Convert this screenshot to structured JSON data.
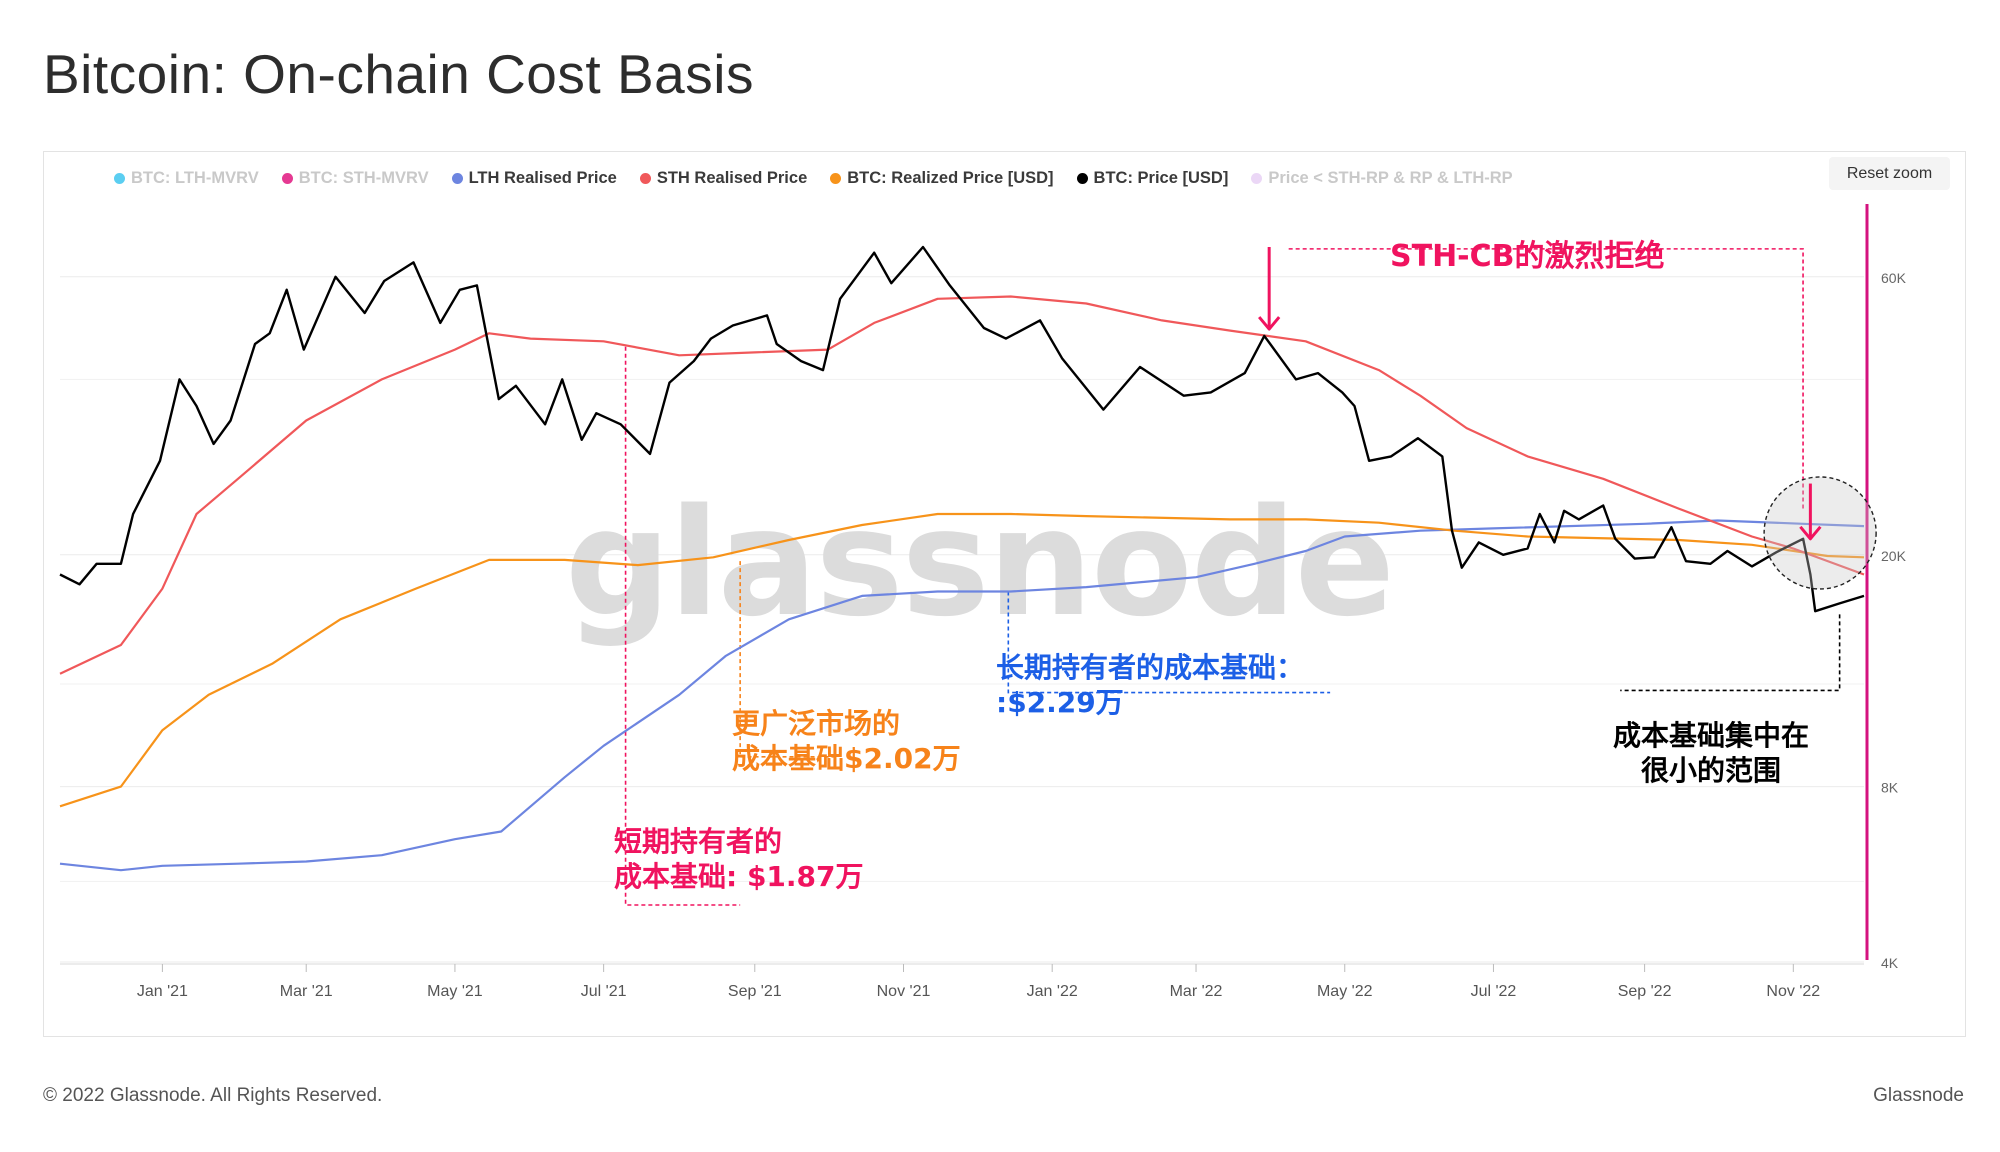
{
  "title": "Bitcoin: On-chain Cost Basis",
  "footer": {
    "copyright": "© 2022 Glassnode. All Rights Reserved.",
    "brand": "Glassnode"
  },
  "reset_zoom_label": "Reset zoom",
  "watermark": "glassnode",
  "legend": [
    {
      "label": "BTC: LTH-MVRV",
      "color": "#3ec6ee",
      "enabled": false
    },
    {
      "label": "BTC: STH-MVRV",
      "color": "#e0167f",
      "enabled": false
    },
    {
      "label": "LTH Realised Price",
      "color": "#6d85e0",
      "enabled": true
    },
    {
      "label": "STH Realised Price",
      "color": "#f0585a",
      "enabled": true
    },
    {
      "label": "BTC: Realized Price [USD]",
      "color": "#f7931a",
      "enabled": true
    },
    {
      "label": "BTC: Price [USD]",
      "color": "#000000",
      "enabled": true
    },
    {
      "label": "Price < STH-RP & RP & LTH-RP",
      "color": "#e8d0f5",
      "enabled": false
    }
  ],
  "annotations": {
    "sth_rejection": "STH-CB的激烈拒绝",
    "lth_cost_basis": [
      "长期持有者的成本基础：",
      ":$2.29万"
    ],
    "market_cost_basis": [
      "更广泛市场的",
      "成本基础$2.02万"
    ],
    "sth_cost_basis": [
      "短期持有者的",
      "成本基础: $1.87万"
    ],
    "concentration": [
      "成本基础集中在",
      "很小的范围"
    ]
  },
  "colors": {
    "annotation_pink": "#f0135f",
    "annotation_blue": "#1c5fe6",
    "annotation_orange": "#f7831a",
    "annotation_black": "#000000",
    "right_axis_line": "#d4127f"
  },
  "chart_data": {
    "type": "line",
    "y_scale": "log",
    "ylim": [
      4000,
      80000
    ],
    "y_ticks": [
      {
        "value": 60000,
        "label": "60K"
      },
      {
        "value": 20000,
        "label": "20K"
      },
      {
        "value": 8000,
        "label": "8K"
      },
      {
        "value": 4000,
        "label": "4K"
      }
    ],
    "x_range": [
      "2020-11-20",
      "2022-11-30"
    ],
    "x_ticks": [
      {
        "date": "2021-01-01",
        "label": "Jan '21"
      },
      {
        "date": "2021-03-01",
        "label": "Mar '21"
      },
      {
        "date": "2021-05-01",
        "label": "May '21"
      },
      {
        "date": "2021-07-01",
        "label": "Jul '21"
      },
      {
        "date": "2021-09-01",
        "label": "Sep '21"
      },
      {
        "date": "2021-11-01",
        "label": "Nov '21"
      },
      {
        "date": "2022-01-01",
        "label": "Jan '22"
      },
      {
        "date": "2022-03-01",
        "label": "Mar '22"
      },
      {
        "date": "2022-05-01",
        "label": "May '22"
      },
      {
        "date": "2022-07-01",
        "label": "Jul '22"
      },
      {
        "date": "2022-09-01",
        "label": "Sep '22"
      },
      {
        "date": "2022-11-01",
        "label": "Nov '22"
      }
    ],
    "series": [
      {
        "name": "BTC: Price [USD]",
        "color": "#000000",
        "values": [
          [
            "2020-11-20",
            18500
          ],
          [
            "2020-11-28",
            17800
          ],
          [
            "2020-12-05",
            19300
          ],
          [
            "2020-12-15",
            19300
          ],
          [
            "2020-12-20",
            23500
          ],
          [
            "2020-12-31",
            29000
          ],
          [
            "2021-01-08",
            40000
          ],
          [
            "2021-01-15",
            36000
          ],
          [
            "2021-01-22",
            31000
          ],
          [
            "2021-01-29",
            34000
          ],
          [
            "2021-02-08",
            46000
          ],
          [
            "2021-02-14",
            48000
          ],
          [
            "2021-02-21",
            57000
          ],
          [
            "2021-02-28",
            45000
          ],
          [
            "2021-03-13",
            60000
          ],
          [
            "2021-03-25",
            52000
          ],
          [
            "2021-04-02",
            59000
          ],
          [
            "2021-04-14",
            63500
          ],
          [
            "2021-04-25",
            50000
          ],
          [
            "2021-05-03",
            57000
          ],
          [
            "2021-05-10",
            58000
          ],
          [
            "2021-05-19",
            37000
          ],
          [
            "2021-05-26",
            39000
          ],
          [
            "2021-06-07",
            33500
          ],
          [
            "2021-06-14",
            40000
          ],
          [
            "2021-06-22",
            31500
          ],
          [
            "2021-06-28",
            35000
          ],
          [
            "2021-07-08",
            33500
          ],
          [
            "2021-07-20",
            29800
          ],
          [
            "2021-07-28",
            39500
          ],
          [
            "2021-08-07",
            43000
          ],
          [
            "2021-08-14",
            47000
          ],
          [
            "2021-08-23",
            49500
          ],
          [
            "2021-09-06",
            51500
          ],
          [
            "2021-09-10",
            46000
          ],
          [
            "2021-09-20",
            43000
          ],
          [
            "2021-09-29",
            41500
          ],
          [
            "2021-10-06",
            55000
          ],
          [
            "2021-10-20",
            66000
          ],
          [
            "2021-10-27",
            58500
          ],
          [
            "2021-11-09",
            67500
          ],
          [
            "2021-11-20",
            58000
          ],
          [
            "2021-12-04",
            49000
          ],
          [
            "2021-12-13",
            47000
          ],
          [
            "2021-12-27",
            50500
          ],
          [
            "2022-01-05",
            43500
          ],
          [
            "2022-01-22",
            35500
          ],
          [
            "2022-02-06",
            42000
          ],
          [
            "2022-02-24",
            37500
          ],
          [
            "2022-03-07",
            38000
          ],
          [
            "2022-03-21",
            41000
          ],
          [
            "2022-03-29",
            47500
          ],
          [
            "2022-04-11",
            40000
          ],
          [
            "2022-04-20",
            41000
          ],
          [
            "2022-04-30",
            38000
          ],
          [
            "2022-05-05",
            36000
          ],
          [
            "2022-05-11",
            29000
          ],
          [
            "2022-05-20",
            29500
          ],
          [
            "2022-05-31",
            31700
          ],
          [
            "2022-06-10",
            29500
          ],
          [
            "2022-06-14",
            22000
          ],
          [
            "2022-06-18",
            19000
          ],
          [
            "2022-06-25",
            21000
          ],
          [
            "2022-07-05",
            20000
          ],
          [
            "2022-07-15",
            20500
          ],
          [
            "2022-07-20",
            23500
          ],
          [
            "2022-07-26",
            21000
          ],
          [
            "2022-07-30",
            23800
          ],
          [
            "2022-08-05",
            23000
          ],
          [
            "2022-08-15",
            24300
          ],
          [
            "2022-08-20",
            21300
          ],
          [
            "2022-08-28",
            19700
          ],
          [
            "2022-09-05",
            19800
          ],
          [
            "2022-09-12",
            22300
          ],
          [
            "2022-09-18",
            19500
          ],
          [
            "2022-09-28",
            19300
          ],
          [
            "2022-10-05",
            20300
          ],
          [
            "2022-10-15",
            19100
          ],
          [
            "2022-10-25",
            20200
          ],
          [
            "2022-11-05",
            21300
          ],
          [
            "2022-11-08",
            18500
          ],
          [
            "2022-11-10",
            16000
          ],
          [
            "2022-11-20",
            16500
          ],
          [
            "2022-11-30",
            17000
          ]
        ]
      },
      {
        "name": "STH Realised Price",
        "color": "#f0585a",
        "values": [
          [
            "2020-11-20",
            12500
          ],
          [
            "2020-12-15",
            14000
          ],
          [
            "2021-01-01",
            17500
          ],
          [
            "2021-01-15",
            23500
          ],
          [
            "2021-02-01",
            27000
          ],
          [
            "2021-03-01",
            34000
          ],
          [
            "2021-04-01",
            40000
          ],
          [
            "2021-05-01",
            45000
          ],
          [
            "2021-05-15",
            48000
          ],
          [
            "2021-06-01",
            47000
          ],
          [
            "2021-07-01",
            46500
          ],
          [
            "2021-08-01",
            44000
          ],
          [
            "2021-09-01",
            44500
          ],
          [
            "2021-10-01",
            45000
          ],
          [
            "2021-10-20",
            50000
          ],
          [
            "2021-11-15",
            55000
          ],
          [
            "2021-12-15",
            55500
          ],
          [
            "2022-01-15",
            54000
          ],
          [
            "2022-02-15",
            50500
          ],
          [
            "2022-03-15",
            48500
          ],
          [
            "2022-04-15",
            46500
          ],
          [
            "2022-05-15",
            41500
          ],
          [
            "2022-06-01",
            37500
          ],
          [
            "2022-06-20",
            33000
          ],
          [
            "2022-07-15",
            29500
          ],
          [
            "2022-08-15",
            27000
          ],
          [
            "2022-09-15",
            24000
          ],
          [
            "2022-10-15",
            21500
          ],
          [
            "2022-11-01",
            20500
          ],
          [
            "2022-11-30",
            18500
          ]
        ]
      },
      {
        "name": "BTC: Realized Price [USD]",
        "color": "#f7931a",
        "values": [
          [
            "2020-11-20",
            7400
          ],
          [
            "2020-12-15",
            8000
          ],
          [
            "2021-01-01",
            10000
          ],
          [
            "2021-01-20",
            11500
          ],
          [
            "2021-02-15",
            13000
          ],
          [
            "2021-03-15",
            15500
          ],
          [
            "2021-04-15",
            17500
          ],
          [
            "2021-05-15",
            19600
          ],
          [
            "2021-06-15",
            19600
          ],
          [
            "2021-07-15",
            19200
          ],
          [
            "2021-08-15",
            19800
          ],
          [
            "2021-09-15",
            21200
          ],
          [
            "2021-10-15",
            22500
          ],
          [
            "2021-11-15",
            23500
          ],
          [
            "2021-12-15",
            23500
          ],
          [
            "2022-01-15",
            23300
          ],
          [
            "2022-03-15",
            23000
          ],
          [
            "2022-04-15",
            23000
          ],
          [
            "2022-05-15",
            22700
          ],
          [
            "2022-06-15",
            22000
          ],
          [
            "2022-07-15",
            21500
          ],
          [
            "2022-09-15",
            21200
          ],
          [
            "2022-10-15",
            20800
          ],
          [
            "2022-11-15",
            19900
          ],
          [
            "2022-11-30",
            19800
          ]
        ]
      },
      {
        "name": "LTH Realised Price",
        "color": "#6d85e0",
        "values": [
          [
            "2020-11-20",
            5900
          ],
          [
            "2020-12-15",
            5750
          ],
          [
            "2021-01-01",
            5850
          ],
          [
            "2021-02-01",
            5900
          ],
          [
            "2021-03-01",
            5950
          ],
          [
            "2021-04-01",
            6100
          ],
          [
            "2021-05-01",
            6500
          ],
          [
            "2021-05-20",
            6700
          ],
          [
            "2021-06-15",
            8300
          ],
          [
            "2021-07-01",
            9400
          ],
          [
            "2021-08-01",
            11500
          ],
          [
            "2021-08-20",
            13400
          ],
          [
            "2021-09-15",
            15500
          ],
          [
            "2021-10-15",
            17000
          ],
          [
            "2021-11-15",
            17300
          ],
          [
            "2021-12-15",
            17300
          ],
          [
            "2022-01-15",
            17600
          ],
          [
            "2022-03-01",
            18300
          ],
          [
            "2022-03-25",
            19300
          ],
          [
            "2022-04-15",
            20300
          ],
          [
            "2022-05-01",
            21500
          ],
          [
            "2022-06-01",
            22000
          ],
          [
            "2022-07-01",
            22200
          ],
          [
            "2022-09-01",
            22600
          ],
          [
            "2022-10-01",
            22900
          ],
          [
            "2022-11-05",
            22600
          ],
          [
            "2022-11-30",
            22400
          ]
        ]
      }
    ]
  }
}
